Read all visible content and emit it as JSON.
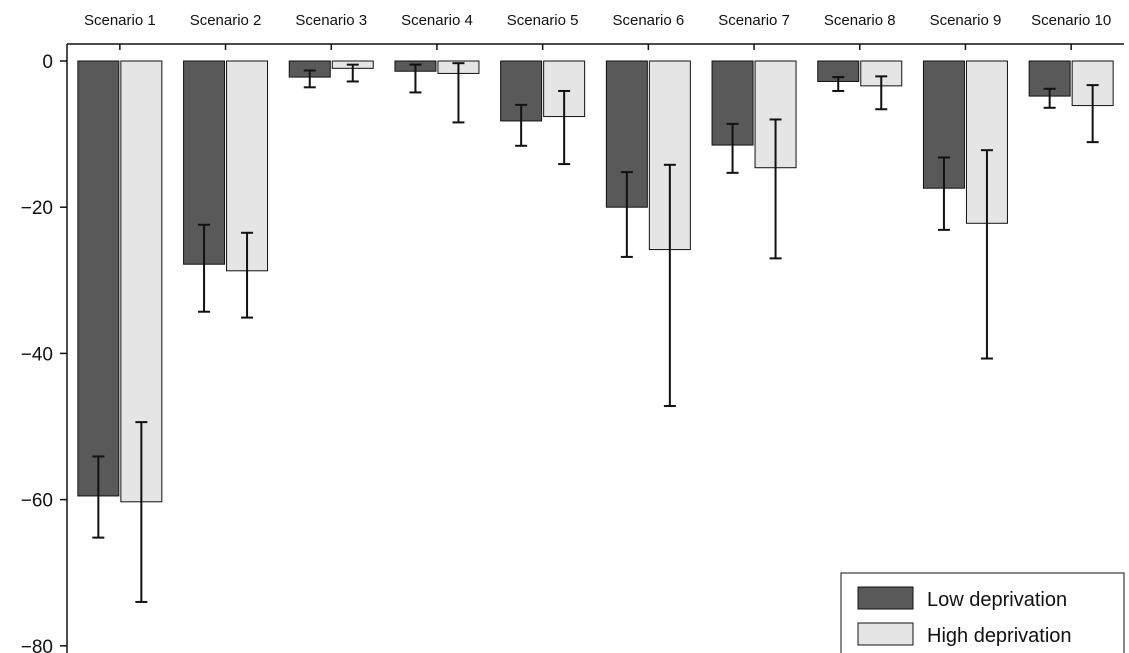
{
  "chart_data": {
    "type": "bar",
    "title": "",
    "xlabel": "",
    "ylabel": "",
    "categories": [
      "Scenario 1",
      "Scenario 2",
      "Scenario 3",
      "Scenario 4",
      "Scenario 5",
      "Scenario 6",
      "Scenario 7",
      "Scenario 8",
      "Scenario 9",
      "Scenario 10"
    ],
    "category_axis_position": "top",
    "ylim": [
      -80,
      0
    ],
    "yticks": [
      0,
      -20,
      -40,
      -60,
      -80
    ],
    "grid": false,
    "legend_position": "bottom-right",
    "series": [
      {
        "name": "Low deprivation",
        "color": "#595959",
        "values": [
          -59.5,
          -27.8,
          -2.2,
          -1.4,
          -8.2,
          -20.0,
          -11.5,
          -2.8,
          -17.4,
          -4.8
        ],
        "error_low": [
          -65.2,
          -34.3,
          -3.6,
          -4.3,
          -11.6,
          -26.8,
          -15.3,
          -4.1,
          -23.1,
          -6.4
        ],
        "error_high": [
          -54.1,
          -22.4,
          -1.3,
          -0.5,
          -6.0,
          -15.2,
          -8.6,
          -2.2,
          -13.2,
          -3.8
        ]
      },
      {
        "name": "High deprivation",
        "color": "#e5e5e5",
        "values": [
          -60.3,
          -28.7,
          -1.0,
          -1.7,
          -7.6,
          -25.8,
          -14.6,
          -3.4,
          -22.2,
          -6.1
        ],
        "error_low": [
          -74.0,
          -35.1,
          -2.8,
          -8.4,
          -14.1,
          -47.2,
          -27.0,
          -6.6,
          -40.7,
          -11.1
        ],
        "error_high": [
          -49.4,
          -23.5,
          -0.5,
          -0.3,
          -4.1,
          -14.2,
          -8.0,
          -2.1,
          -12.2,
          -3.3
        ]
      }
    ]
  }
}
